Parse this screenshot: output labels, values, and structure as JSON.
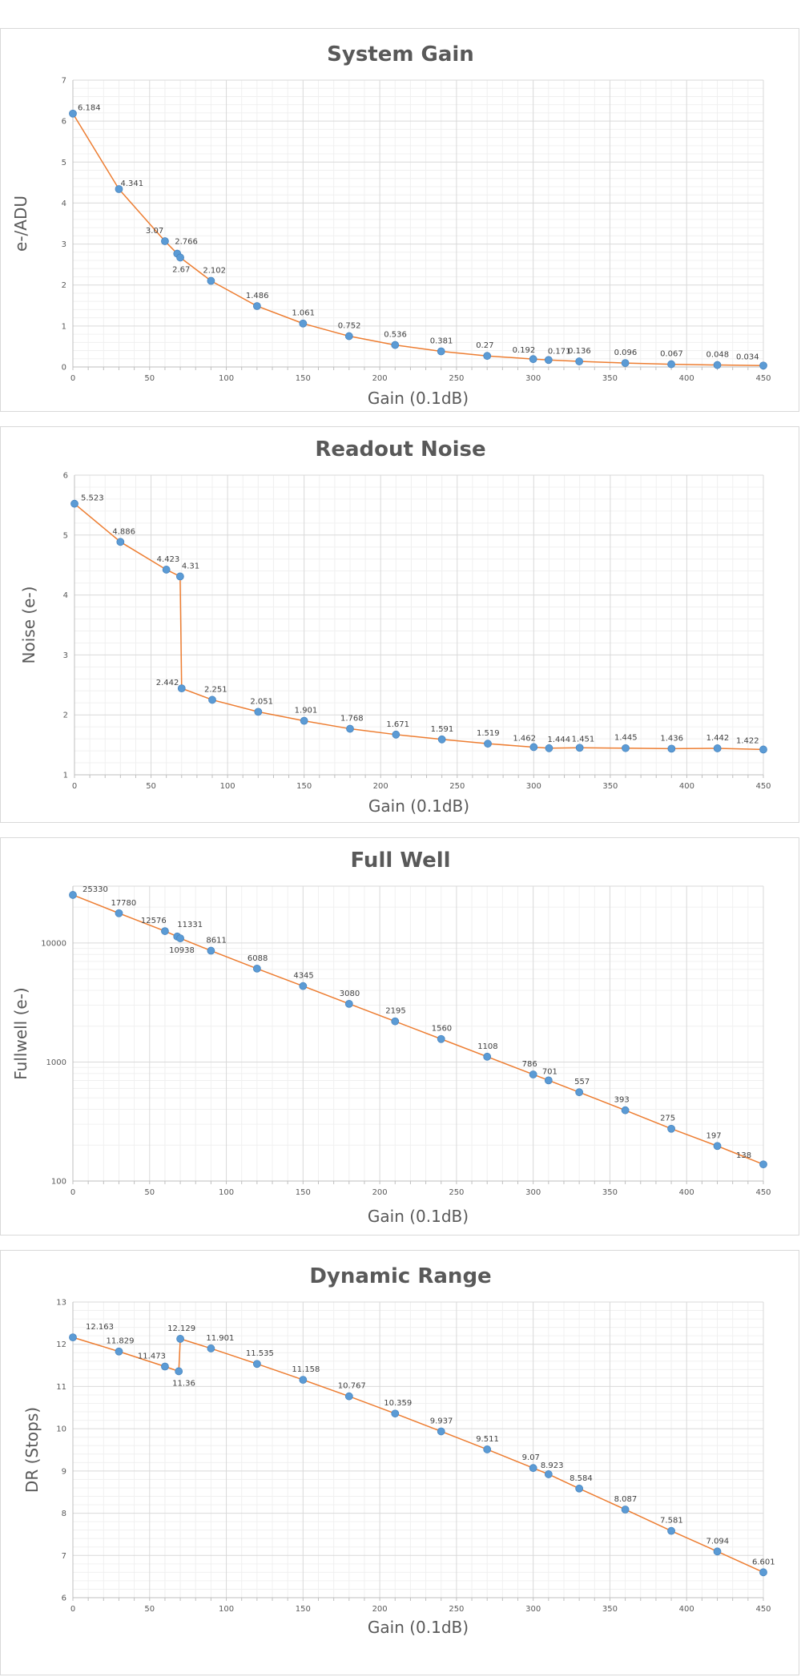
{
  "chart_data": [
    {
      "type": "line",
      "title": "System Gain",
      "xlabel": "Gain (0.1dB)",
      "ylabel": "e-/ADU",
      "xlim": [
        0,
        450
      ],
      "ylim": [
        0,
        7
      ],
      "yscale": "linear",
      "x_ticks": [
        0,
        50,
        100,
        150,
        200,
        250,
        300,
        350,
        400,
        450
      ],
      "y_ticks": [
        0,
        1,
        2,
        3,
        4,
        5,
        6,
        7
      ],
      "grid": true,
      "legend": "none",
      "series": [
        {
          "x": [
            0,
            30,
            60,
            68,
            70,
            90,
            120,
            150,
            180,
            210,
            240,
            270,
            300,
            310,
            330,
            360,
            390,
            420,
            450
          ],
          "y": [
            6.184,
            4.341,
            3.07,
            2.766,
            2.67,
            2.102,
            1.486,
            1.061,
            0.752,
            0.536,
            0.381,
            0.27,
            0.192,
            0.171,
            0.136,
            0.096,
            0.067,
            0.048,
            0.034
          ],
          "labels": [
            "6.184",
            "4.341",
            "3.07",
            "2.766",
            "2.67",
            "2.102",
            "1.486",
            "1.061",
            "0.752",
            "0.536",
            "0.381",
            "0.27",
            "0.192",
            "0.171",
            "0.136",
            "0.096",
            "0.067",
            "0.048",
            "0.034"
          ]
        }
      ]
    },
    {
      "type": "line",
      "title": "Readout Noise",
      "xlabel": "Gain (0.1dB)",
      "ylabel": "Noise (e-)",
      "xlim": [
        0,
        450
      ],
      "ylim": [
        1,
        6
      ],
      "yscale": "linear",
      "x_ticks": [
        0,
        50,
        100,
        150,
        200,
        250,
        300,
        350,
        400,
        450
      ],
      "y_ticks": [
        1,
        2,
        3,
        4,
        5,
        6
      ],
      "grid": true,
      "legend": "none",
      "series": [
        {
          "x": [
            0,
            30,
            60,
            69,
            70,
            90,
            120,
            150,
            180,
            210,
            240,
            270,
            300,
            310,
            330,
            360,
            390,
            420,
            450
          ],
          "y": [
            5.523,
            4.886,
            4.423,
            4.31,
            2.442,
            2.251,
            2.051,
            1.901,
            1.768,
            1.671,
            1.591,
            1.519,
            1.462,
            1.444,
            1.451,
            1.445,
            1.436,
            1.442,
            1.422
          ],
          "labels": [
            "5.523",
            "4.886",
            "4.423",
            "4.31",
            "2.442",
            "2.251",
            "2.051",
            "1.901",
            "1.768",
            "1.671",
            "1.591",
            "1.519",
            "1.462",
            "1.444",
            "1.451",
            "1.445",
            "1.436",
            "1.442",
            "1.422"
          ]
        }
      ]
    },
    {
      "type": "line",
      "title": "Full Well",
      "xlabel": "Gain (0.1dB)",
      "ylabel": "Fullwell (e-)",
      "xlim": [
        0,
        450
      ],
      "ylim": [
        100,
        30000
      ],
      "yscale": "log",
      "x_ticks": [
        0,
        50,
        100,
        150,
        200,
        250,
        300,
        350,
        400,
        450
      ],
      "y_ticks": [
        100,
        1000,
        10000
      ],
      "grid": true,
      "legend": "none",
      "series": [
        {
          "x": [
            0,
            30,
            60,
            68,
            70,
            90,
            120,
            150,
            180,
            210,
            240,
            270,
            300,
            310,
            330,
            360,
            390,
            420,
            450
          ],
          "y": [
            25330,
            17780,
            12576,
            11331,
            10938,
            8611,
            6088,
            4345,
            3080,
            2195,
            1560,
            1108,
            786,
            701,
            557,
            393,
            275,
            197,
            138
          ],
          "labels": [
            "25330",
            "17780",
            "12576",
            "11331",
            "10938",
            "8611",
            "6088",
            "4345",
            "3080",
            "2195",
            "1560",
            "1108",
            "786",
            "701",
            "557",
            "393",
            "275",
            "197",
            "138"
          ]
        }
      ]
    },
    {
      "type": "line",
      "title": "Dynamic Range",
      "xlabel": "Gain (0.1dB)",
      "ylabel": "DR (Stops)",
      "xlim": [
        0,
        450
      ],
      "ylim": [
        6,
        13
      ],
      "yscale": "linear",
      "x_ticks": [
        0,
        50,
        100,
        150,
        200,
        250,
        300,
        350,
        400,
        450
      ],
      "y_ticks": [
        6,
        7,
        8,
        9,
        10,
        11,
        12,
        13
      ],
      "grid": true,
      "legend": "none",
      "series": [
        {
          "x": [
            0,
            30,
            60,
            69,
            70,
            90,
            120,
            150,
            180,
            210,
            240,
            270,
            300,
            310,
            330,
            360,
            390,
            420,
            450
          ],
          "y": [
            12.163,
            11.829,
            11.473,
            11.36,
            12.129,
            11.901,
            11.535,
            11.158,
            10.767,
            10.359,
            9.937,
            9.511,
            9.07,
            8.923,
            8.584,
            8.087,
            7.581,
            7.094,
            6.601
          ],
          "labels": [
            "12.163",
            "11.829",
            "11.473",
            "11.36",
            "12.129",
            "11.901",
            "11.535",
            "11.158",
            "10.767",
            "10.359",
            "9.937",
            "9.511",
            "9.07",
            "8.923",
            "8.584",
            "8.087",
            "7.581",
            "7.094",
            "6.601"
          ]
        }
      ]
    }
  ],
  "colors": {
    "marker": "#5b9bd5",
    "line": "#ed7d31",
    "major_grid": "#d9d9d9",
    "minor_grid": "#f0f0f0",
    "text": "#595959"
  }
}
